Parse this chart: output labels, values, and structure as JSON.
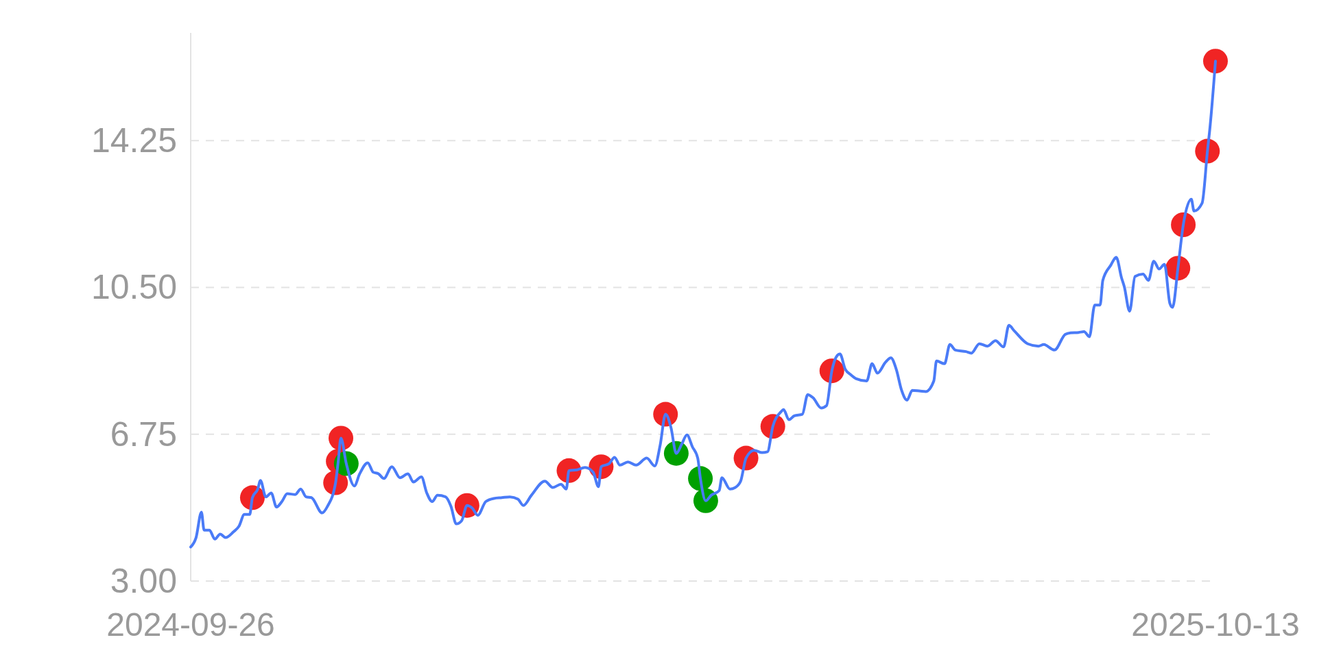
{
  "chart_data": {
    "type": "line",
    "xlim": [
      "2024-09-26",
      "2025-10-13"
    ],
    "xticks": [
      "2024-09-26",
      "2025-10-13"
    ],
    "ylim": [
      3,
      17
    ],
    "yticks": [
      {
        "value": 3,
        "label": "3.00"
      },
      {
        "value": 6.75,
        "label": "6.75"
      },
      {
        "value": 10.5,
        "label": "10.50"
      },
      {
        "value": 14.25,
        "label": "14.25"
      }
    ],
    "grid": "y",
    "series": [
      {
        "color": "#4a7bf7",
        "line_style": "solid",
        "x": [
          "2024-09-26",
          "2024-09-28",
          "2024-09-30",
          "2024-10-01",
          "2024-10-03",
          "2024-10-05",
          "2024-10-07",
          "2024-10-09",
          "2024-10-12",
          "2024-10-14",
          "2024-10-16",
          "2024-10-18",
          "2024-10-19",
          "2024-10-21",
          "2024-10-22",
          "2024-10-24",
          "2024-10-26",
          "2024-10-28",
          "2024-10-30",
          "2024-11-01",
          "2024-11-04",
          "2024-11-06",
          "2024-11-08",
          "2024-11-10",
          "2024-11-14",
          "2024-11-16",
          "2024-11-19",
          "2024-11-20",
          "2024-11-21",
          "2024-11-23",
          "2024-11-26",
          "2024-11-28",
          "2024-12-01",
          "2024-12-03",
          "2024-12-05",
          "2024-12-07",
          "2024-12-10",
          "2024-12-13",
          "2024-12-16",
          "2024-12-18",
          "2024-12-21",
          "2024-12-23",
          "2024-12-25",
          "2024-12-27",
          "2024-12-30",
          "2025-01-01",
          "2025-01-03",
          "2025-01-05",
          "2025-01-07",
          "2025-01-09",
          "2025-01-11",
          "2025-01-14",
          "2025-01-17",
          "2025-01-20",
          "2025-01-23",
          "2025-01-26",
          "2025-01-28",
          "2025-01-31",
          "2025-02-05",
          "2025-02-08",
          "2025-02-11",
          "2025-02-13",
          "2025-02-14",
          "2025-02-17",
          "2025-02-20",
          "2025-02-23",
          "2025-02-25",
          "2025-02-26",
          "2025-03-01",
          "2025-03-03",
          "2025-03-05",
          "2025-03-08",
          "2025-03-11",
          "2025-03-15",
          "2025-03-18",
          "2025-03-20",
          "2025-03-22",
          "2025-03-24",
          "2025-03-26",
          "2025-03-28",
          "2025-03-30",
          "2025-04-01",
          "2025-04-03",
          "2025-04-04",
          "2025-04-06",
          "2025-04-08",
          "2025-04-11",
          "2025-04-12",
          "2025-04-15",
          "2025-04-17",
          "2025-04-19",
          "2025-04-21",
          "2025-04-24",
          "2025-04-27",
          "2025-04-29",
          "2025-05-01",
          "2025-05-04",
          "2025-05-05",
          "2025-05-07",
          "2025-05-09",
          "2025-05-12",
          "2025-05-14",
          "2025-05-16",
          "2025-05-19",
          "2025-05-21",
          "2025-05-23",
          "2025-05-25",
          "2025-05-26",
          "2025-05-28",
          "2025-05-30",
          "2025-06-01",
          "2025-06-05",
          "2025-06-07",
          "2025-06-09",
          "2025-06-12",
          "2025-06-14",
          "2025-06-16",
          "2025-06-18",
          "2025-06-20",
          "2025-06-22",
          "2025-06-25",
          "2025-06-27",
          "2025-06-30",
          "2025-07-01",
          "2025-07-04",
          "2025-07-06",
          "2025-07-08",
          "2025-07-12",
          "2025-07-14",
          "2025-07-17",
          "2025-07-20",
          "2025-07-23",
          "2025-07-26",
          "2025-07-28",
          "2025-07-30",
          "2025-08-04",
          "2025-08-08",
          "2025-08-10",
          "2025-08-14",
          "2025-08-18",
          "2025-08-20",
          "2025-08-23",
          "2025-08-25",
          "2025-08-27",
          "2025-08-29",
          "2025-08-31",
          "2025-09-01",
          "2025-09-04",
          "2025-09-06",
          "2025-09-08",
          "2025-09-09",
          "2025-09-11",
          "2025-09-13",
          "2025-09-16",
          "2025-09-18",
          "2025-09-20",
          "2025-09-22",
          "2025-09-24",
          "2025-09-26",
          "2025-09-27",
          "2025-09-29",
          "2025-10-01",
          "2025-10-04",
          "2025-10-05",
          "2025-10-08",
          "2025-10-10",
          "2025-10-11",
          "2025-10-13"
        ],
        "values": [
          3.87,
          4.11,
          4.76,
          4.3,
          4.3,
          4.07,
          4.2,
          4.11,
          4.26,
          4.4,
          4.7,
          4.7,
          5.13,
          5.35,
          5.57,
          5.15,
          5.25,
          4.89,
          5.03,
          5.23,
          5.21,
          5.35,
          5.15,
          5.13,
          4.74,
          4.91,
          5.51,
          6.06,
          6.65,
          6.0,
          5.43,
          5.74,
          6.02,
          5.78,
          5.74,
          5.62,
          5.92,
          5.64,
          5.74,
          5.53,
          5.66,
          5.25,
          5.03,
          5.19,
          5.15,
          4.91,
          4.46,
          4.54,
          4.93,
          4.86,
          4.68,
          5.03,
          5.11,
          5.13,
          5.15,
          5.09,
          4.93,
          5.19,
          5.55,
          5.39,
          5.47,
          5.35,
          5.82,
          5.84,
          5.9,
          5.78,
          5.41,
          5.92,
          6.0,
          6.16,
          5.96,
          6.04,
          5.96,
          6.14,
          5.94,
          6.47,
          7.26,
          6.93,
          6.26,
          6.49,
          6.73,
          6.43,
          6.14,
          5.62,
          5.05,
          5.19,
          5.31,
          5.64,
          5.35,
          5.39,
          5.55,
          6.14,
          6.34,
          6.28,
          6.3,
          6.95,
          7.32,
          7.38,
          7.12,
          7.22,
          7.26,
          7.76,
          7.68,
          7.42,
          7.48,
          8.37,
          8.76,
          8.8,
          8.41,
          8.27,
          8.17,
          8.11,
          8.55,
          8.31,
          8.59,
          8.7,
          8.41,
          7.87,
          7.62,
          7.87,
          7.85,
          7.84,
          8.11,
          8.62,
          8.55,
          9.04,
          8.9,
          8.86,
          8.82,
          9.06,
          9.0,
          9.14,
          8.98,
          9.53,
          9.39,
          9.06,
          9.0,
          9.04,
          8.9,
          9.3,
          9.34,
          9.35,
          9.37,
          9.24,
          10.05,
          10.05,
          10.68,
          11.07,
          11.27,
          10.74,
          10.52,
          9.89,
          10.78,
          10.84,
          10.68,
          11.17,
          10.97,
          11.09,
          10.09,
          9.99,
          10.99,
          12.1,
          12.75,
          12.45,
          12.65,
          13.98,
          14.62,
          16.28
        ]
      },
      {
        "type": "scatter",
        "color": "#f02424",
        "marker": "circle",
        "x": [
          "2024-10-19",
          "2024-11-19",
          "2024-11-20",
          "2024-11-21",
          "2025-01-07",
          "2025-02-14",
          "2025-02-26",
          "2025-03-22",
          "2025-04-21",
          "2025-05-01",
          "2025-05-23",
          "2025-09-29",
          "2025-10-01",
          "2025-10-10",
          "2025-10-13"
        ],
        "values": [
          5.13,
          5.51,
          6.06,
          6.65,
          4.93,
          5.82,
          5.92,
          7.26,
          6.14,
          6.95,
          8.37,
          10.99,
          12.1,
          13.98,
          16.28
        ]
      },
      {
        "type": "scatter",
        "color": "#00a000",
        "marker": "circle",
        "x": [
          "2024-11-23",
          "2025-03-26",
          "2025-04-04",
          "2025-04-06"
        ],
        "values": [
          6.0,
          6.26,
          5.62,
          5.05
        ]
      }
    ]
  }
}
